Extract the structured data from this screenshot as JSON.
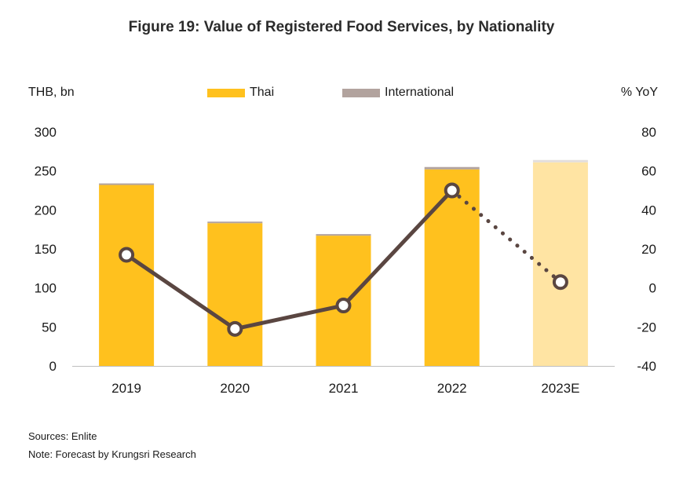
{
  "title": "Figure 19: Value of Registered Food Services, by Nationality",
  "left_axis_unit": "THB, bn",
  "right_axis_unit": "% YoY",
  "legend": [
    {
      "label": "Thai",
      "color": "#ffc11e"
    },
    {
      "label": "International",
      "color": "#b2a39e"
    }
  ],
  "chart_data": {
    "type": "bar",
    "categories": [
      "2019",
      "2020",
      "2021",
      "2022",
      "2023E"
    ],
    "series": [
      {
        "name": "Thai",
        "type": "stacked-bar",
        "axis": "left",
        "values": [
          232,
          183,
          167,
          252,
          261
        ]
      },
      {
        "name": "International",
        "type": "stacked-bar",
        "axis": "left",
        "values": [
          2,
          2,
          2,
          3,
          3
        ]
      },
      {
        "type": "line",
        "axis": "right",
        "values": [
          17,
          -21,
          -9,
          50,
          3
        ]
      }
    ],
    "forecast_category": "2023E",
    "ylim_left": [
      0,
      300
    ],
    "yticks_left": [
      "300",
      "250",
      "200",
      "150",
      "100",
      "50",
      "0"
    ],
    "ylim_right": [
      -40,
      80
    ],
    "yticks_right": [
      "80",
      "60",
      "40",
      "20",
      "0",
      "-20",
      "-40"
    ],
    "colors": {
      "thai": "#ffc11e",
      "thai_forecast": "#ffe4a3",
      "international": "#b2a39e",
      "international_forecast": "#e3dedc",
      "line": "#5a4641",
      "axis": "#bfbfbf"
    }
  },
  "notes": {
    "sources": "Sources: Enlite",
    "note": "Note: Forecast by Krungsri Research"
  }
}
